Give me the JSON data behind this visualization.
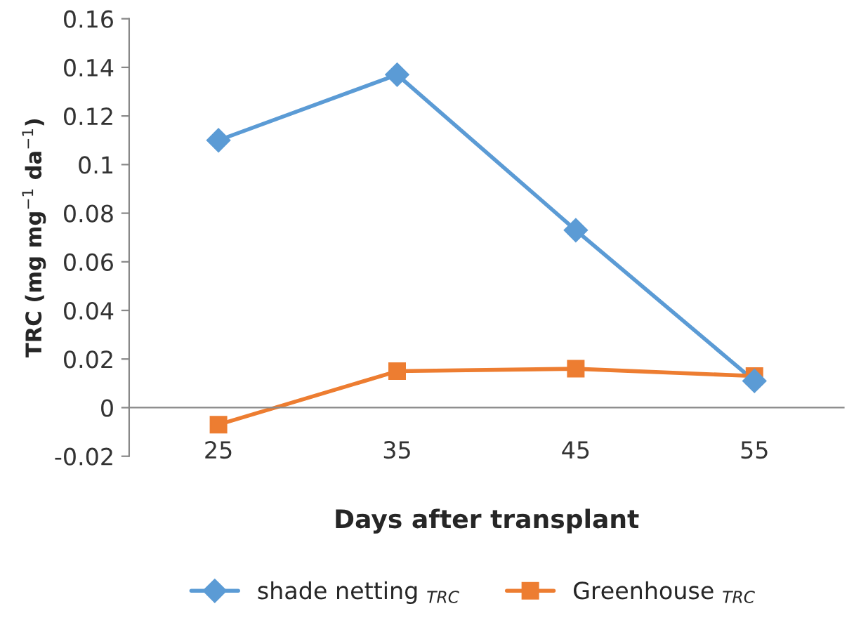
{
  "chart_data": {
    "type": "line",
    "xlabel": "Days after transplant",
    "ylabel": "TRC (mg mg$^{−1}$ da$^{−1}$)",
    "categories": [
      "25",
      "35",
      "45",
      "55"
    ],
    "series": [
      {
        "name": "shade netting $_{TRC}$",
        "color": "#5b9bd5",
        "marker": "diamond",
        "values": [
          0.11,
          0.137,
          0.073,
          0.011
        ]
      },
      {
        "name": "Greenhouse $_{TRC}$",
        "color": "#ed7d31",
        "marker": "square",
        "values": [
          -0.007,
          0.015,
          0.016,
          0.013
        ]
      }
    ],
    "ylim": [
      -0.02,
      0.16
    ],
    "yticks": [
      -0.02,
      0,
      0.02,
      0.04,
      0.06,
      0.08,
      0.1,
      0.12,
      0.14,
      0.16
    ],
    "grid": false,
    "legend": "bottom",
    "line_style": "solid"
  }
}
